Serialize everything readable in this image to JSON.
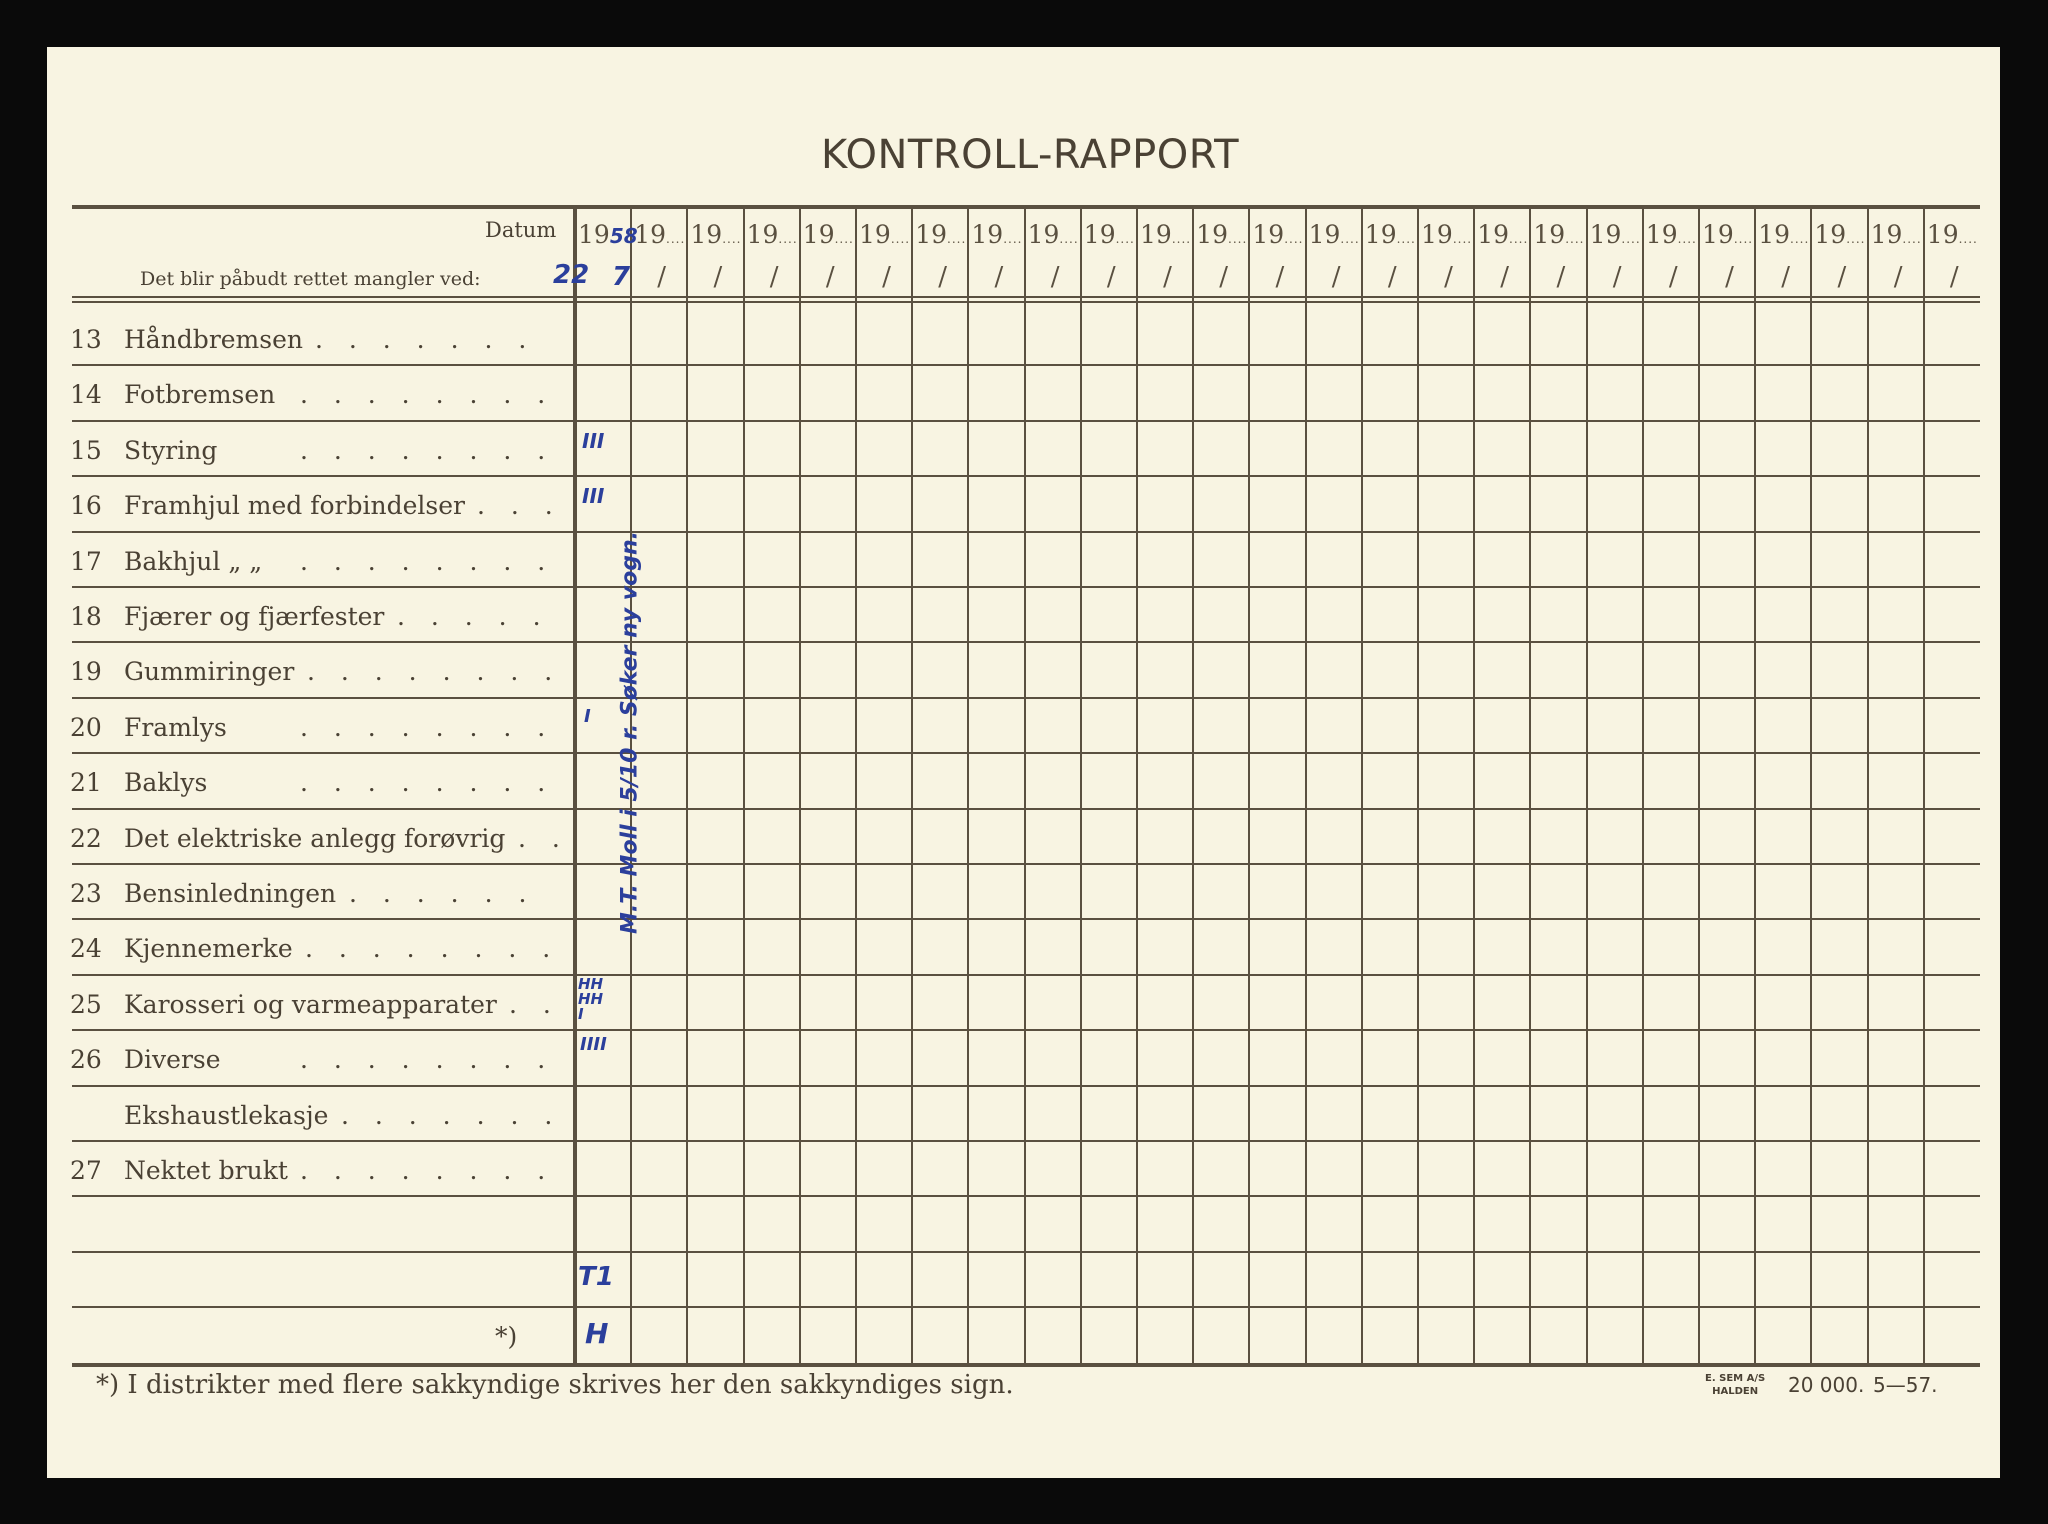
{
  "title": "KONTROLL-RAPPORT",
  "header": {
    "datum_label": "Datum",
    "subtitle": "Det blir påbudt rettet mangler ved:",
    "year_prefix": "19",
    "column_count": 25
  },
  "rows": [
    {
      "num": "13",
      "label": "Håndbremsen"
    },
    {
      "num": "14",
      "label": "Fotbremsen"
    },
    {
      "num": "15",
      "label": "Styring"
    },
    {
      "num": "16",
      "label": "Framhjul med forbindelser"
    },
    {
      "num": "17",
      "label": "Bakhjul   „      „"
    },
    {
      "num": "18",
      "label": "Fjærer og fjærfester"
    },
    {
      "num": "19",
      "label": "Gummiringer"
    },
    {
      "num": "20",
      "label": "Framlys"
    },
    {
      "num": "21",
      "label": "Baklys"
    },
    {
      "num": "22",
      "label": "Det elektriske anlegg forøvrig"
    },
    {
      "num": "23",
      "label": "Bensinledningen"
    },
    {
      "num": "24",
      "label": "Kjennemerke"
    },
    {
      "num": "25",
      "label": "Karosseri og varmeapparater"
    },
    {
      "num": "26",
      "label": "Diverse"
    },
    {
      "num": "",
      "label": "Ekshaustlekasje"
    },
    {
      "num": "27",
      "label": "Nektet brukt"
    },
    {
      "num": "",
      "label": ""
    },
    {
      "num": "",
      "label": ""
    },
    {
      "num": "",
      "label": "*)"
    }
  ],
  "handwriting": {
    "year_suffix": "58",
    "date_day": "22",
    "date_month": "7",
    "row_15": "III",
    "row_16": "III",
    "row_20": "I",
    "row_25": "HH HH I",
    "row_26": "IIII",
    "row_blank_2": "T1",
    "signature_row": "H",
    "vertical_note": "M.T. Moll i 5/10 r. Søker ny vogn."
  },
  "footer": {
    "note": "*)   I distrikter med flere sakkyndige skrives her den sakkyndiges sign.",
    "printer_line1": "E. SEM A/S",
    "printer_line2": "HALDEN",
    "print_run": "20 000.",
    "print_date": "5—57."
  },
  "colors": {
    "paper": "#f8f4e2",
    "ink": "#4a4134",
    "pen": "#2b3f9c"
  }
}
